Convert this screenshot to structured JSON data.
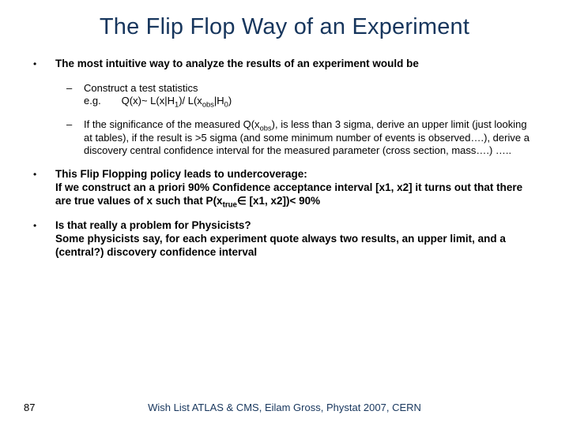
{
  "title": "The Flip Flop Way of an Experiment",
  "bullets": {
    "b1_pre": "The most intuitive way to analyze the results of an experiment would be",
    "b1a_l1": "Construct a test statistics",
    "b1a_l2_pre": "e.g.  Q(x)~ L(x|H",
    "b1a_l2_sub1": "1",
    "b1a_l2_mid": ")/ L(x",
    "b1a_l2_sub2": "obs",
    "b1a_l2_mid2": "|H",
    "b1a_l2_sub3": "0",
    "b1a_l2_end": ")",
    "b1b_pre": "If the significance of the measured Q(x",
    "b1b_sub1": "obs",
    "b1b_post": "), is less than 3 sigma, derive an upper limit (just looking at tables), if the result is >5 sigma (and some minimum number of events is observed….), derive a discovery central confidence interval for the measured parameter (cross section, mass….) …..",
    "b2_l1": "This Flip Flopping policy leads to undercoverage:",
    "b2_l2_pre": "If we construct an a priori  90% Confidence acceptance interval  [x1, x2] it turns out that there are true values of x such that P(x",
    "b2_l2_sub": "true",
    "b2_l2_post": "∈ [x1, x2])< 90%",
    "b3_l1": "Is that really a problem for Physicists?",
    "b3_l2": "Some physicists say, for each experiment quote always two results, an upper limit, and a (central?) discovery confidence interval"
  },
  "page_number": "87",
  "footer": "Wish List ATLAS & CMS, Eilam Gross, Phystat 2007, CERN"
}
